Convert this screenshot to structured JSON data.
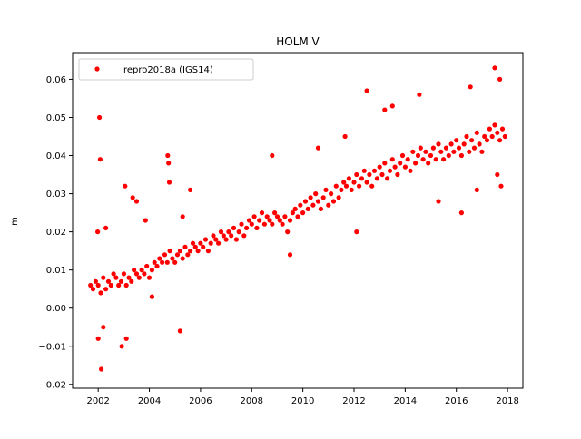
{
  "chart_data": {
    "type": "scatter",
    "title": "HOLM V",
    "xlabel": "",
    "ylabel": "m",
    "xlim": [
      2001.0,
      2018.6
    ],
    "ylim": [
      -0.021,
      0.067
    ],
    "xticks": [
      2002,
      2004,
      2006,
      2008,
      2010,
      2012,
      2014,
      2016,
      2018
    ],
    "xtick_labels": [
      "2002",
      "2004",
      "2006",
      "2008",
      "2010",
      "2012",
      "2014",
      "2016",
      "2018"
    ],
    "yticks": [
      -0.02,
      -0.01,
      0.0,
      0.01,
      0.02,
      0.03,
      0.04,
      0.05,
      0.06
    ],
    "ytick_labels": [
      "−0.02",
      "−0.01",
      "0.00",
      "0.01",
      "0.02",
      "0.03",
      "0.04",
      "0.05",
      "0.06"
    ],
    "grid": false,
    "legend_position": "top-left",
    "series": [
      {
        "name": "repro2018a (IGS14)",
        "color": "#ff0000",
        "marker": "circle",
        "x": [
          2001.7,
          2001.8,
          2001.9,
          2002.0,
          2002.1,
          2002.2,
          2002.3,
          2002.4,
          2002.5,
          2002.6,
          2002.7,
          2002.8,
          2002.9,
          2003.0,
          2003.1,
          2003.2,
          2003.3,
          2003.4,
          2003.5,
          2003.6,
          2003.7,
          2003.8,
          2003.9,
          2004.0,
          2004.1,
          2004.2,
          2004.3,
          2004.4,
          2004.5,
          2004.6,
          2004.7,
          2004.8,
          2004.9,
          2005.0,
          2005.1,
          2005.2,
          2005.3,
          2005.4,
          2005.5,
          2005.6,
          2005.7,
          2005.8,
          2005.9,
          2006.0,
          2006.1,
          2006.2,
          2006.3,
          2006.4,
          2006.5,
          2006.6,
          2006.7,
          2006.8,
          2006.9,
          2007.0,
          2007.1,
          2007.2,
          2007.3,
          2007.4,
          2007.5,
          2007.6,
          2007.7,
          2007.8,
          2007.9,
          2008.0,
          2008.1,
          2008.2,
          2008.3,
          2008.4,
          2008.5,
          2008.6,
          2008.7,
          2008.8,
          2008.9,
          2009.0,
          2009.1,
          2009.2,
          2009.3,
          2009.4,
          2009.5,
          2009.6,
          2009.7,
          2009.8,
          2009.9,
          2010.0,
          2010.1,
          2010.2,
          2010.3,
          2010.4,
          2010.5,
          2010.6,
          2010.7,
          2010.8,
          2010.9,
          2011.0,
          2011.1,
          2011.2,
          2011.3,
          2011.4,
          2011.5,
          2011.6,
          2011.7,
          2011.8,
          2011.9,
          2012.0,
          2012.1,
          2012.2,
          2012.3,
          2012.4,
          2012.5,
          2012.6,
          2012.7,
          2012.8,
          2012.9,
          2013.0,
          2013.1,
          2013.2,
          2013.3,
          2013.4,
          2013.5,
          2013.6,
          2013.7,
          2013.8,
          2013.9,
          2014.0,
          2014.1,
          2014.2,
          2014.3,
          2014.4,
          2014.5,
          2014.6,
          2014.7,
          2014.8,
          2014.9,
          2015.0,
          2015.1,
          2015.2,
          2015.3,
          2015.4,
          2015.5,
          2015.6,
          2015.7,
          2015.8,
          2015.9,
          2016.0,
          2016.1,
          2016.2,
          2016.3,
          2016.4,
          2016.5,
          2016.6,
          2016.7,
          2016.8,
          2016.9,
          2017.0,
          2017.1,
          2017.2,
          2017.3,
          2017.4,
          2017.5,
          2017.6,
          2017.7,
          2017.8,
          2017.9,
          2002.05,
          2002.08,
          2002.0,
          2001.98,
          2002.12,
          2002.92,
          2003.05,
          2003.1,
          2003.35,
          2003.5,
          2003.85,
          2004.72,
          2004.75,
          2004.78,
          2005.2,
          2005.3,
          2005.6,
          2008.8,
          2009.5,
          2010.6,
          2011.65,
          2012.5,
          2012.1,
          2013.2,
          2013.5,
          2014.55,
          2015.3,
          2016.2,
          2016.8,
          2016.55,
          2017.5,
          2017.7,
          2017.75,
          2017.6,
          2002.2,
          2002.3,
          2004.1
        ],
        "y": [
          0.006,
          0.005,
          0.007,
          0.006,
          0.004,
          0.008,
          0.005,
          0.007,
          0.006,
          0.009,
          0.008,
          0.006,
          0.007,
          0.009,
          0.006,
          0.008,
          0.007,
          0.01,
          0.009,
          0.008,
          0.01,
          0.009,
          0.011,
          0.008,
          0.01,
          0.012,
          0.011,
          0.013,
          0.012,
          0.014,
          0.012,
          0.015,
          0.013,
          0.012,
          0.014,
          0.015,
          0.013,
          0.016,
          0.014,
          0.015,
          0.017,
          0.016,
          0.015,
          0.017,
          0.016,
          0.018,
          0.015,
          0.017,
          0.019,
          0.018,
          0.017,
          0.02,
          0.019,
          0.018,
          0.02,
          0.019,
          0.021,
          0.018,
          0.02,
          0.022,
          0.019,
          0.021,
          0.023,
          0.022,
          0.024,
          0.021,
          0.023,
          0.025,
          0.022,
          0.024,
          0.023,
          0.022,
          0.025,
          0.024,
          0.023,
          0.022,
          0.024,
          0.02,
          0.023,
          0.025,
          0.026,
          0.024,
          0.027,
          0.025,
          0.028,
          0.026,
          0.029,
          0.027,
          0.03,
          0.028,
          0.026,
          0.029,
          0.031,
          0.027,
          0.03,
          0.028,
          0.032,
          0.029,
          0.031,
          0.033,
          0.032,
          0.034,
          0.031,
          0.033,
          0.035,
          0.032,
          0.034,
          0.036,
          0.033,
          0.035,
          0.032,
          0.036,
          0.034,
          0.037,
          0.035,
          0.038,
          0.034,
          0.036,
          0.039,
          0.037,
          0.035,
          0.038,
          0.04,
          0.037,
          0.039,
          0.036,
          0.041,
          0.038,
          0.04,
          0.042,
          0.039,
          0.041,
          0.038,
          0.04,
          0.042,
          0.039,
          0.043,
          0.041,
          0.039,
          0.042,
          0.04,
          0.043,
          0.041,
          0.044,
          0.042,
          0.04,
          0.043,
          0.045,
          0.041,
          0.044,
          0.042,
          0.046,
          0.043,
          0.041,
          0.045,
          0.044,
          0.047,
          0.045,
          0.048,
          0.046,
          0.044,
          0.047,
          0.045,
          0.05,
          0.039,
          -0.008,
          0.02,
          -0.016,
          -0.01,
          0.032,
          -0.008,
          0.029,
          0.028,
          0.023,
          0.04,
          0.038,
          0.033,
          -0.006,
          0.024,
          0.031,
          0.04,
          0.014,
          0.042,
          0.045,
          0.057,
          0.02,
          0.052,
          0.053,
          0.056,
          0.028,
          0.025,
          0.031,
          0.058,
          0.063,
          0.06,
          0.032,
          0.035,
          -0.005,
          0.021,
          0.003
        ]
      }
    ]
  }
}
